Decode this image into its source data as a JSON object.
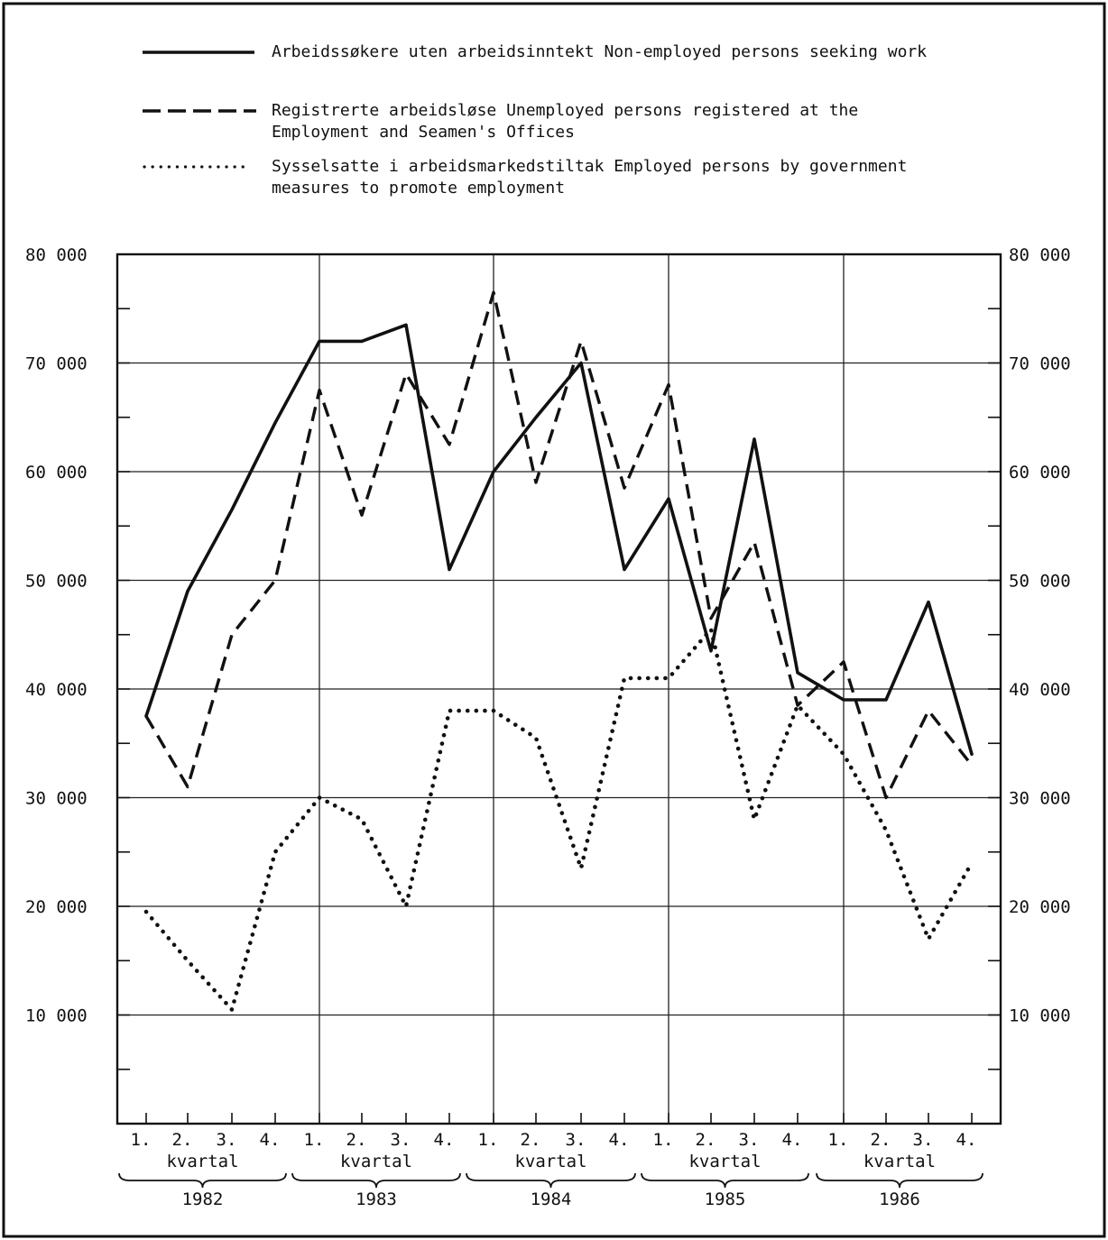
{
  "chart_data": {
    "type": "line",
    "legend": [
      {
        "series": "solid",
        "lines": [
          "Arbeidssøkere uten arbeidsinntekt  Non-employed persons seeking work"
        ]
      },
      {
        "series": "dashed",
        "lines": [
          "Registrerte arbeidsløse  Unemployed persons registered at the",
          "Employment and Seamen's Offices"
        ]
      },
      {
        "series": "dotted",
        "lines": [
          "Sysselsatte i arbeidsmarkedstiltak  Employed persons by government",
          "measures to promote employment"
        ]
      }
    ],
    "ylim": [
      0,
      80000
    ],
    "y_ticks": [
      10000,
      20000,
      30000,
      40000,
      50000,
      60000,
      70000,
      80000
    ],
    "y_tick_labels_left": [
      "10 000",
      "20 000",
      "30 000",
      "40 000",
      "50 000",
      "60 000",
      "70 000",
      "80 000"
    ],
    "y_tick_labels_right": [
      "10 000",
      "20 000",
      "30 000",
      "40 000",
      "50 000",
      "60 000",
      "70 000",
      "80 000"
    ],
    "quarter_labels": [
      "1.",
      "2.",
      "3.",
      "4.",
      "1.",
      "2.",
      "3.",
      "4.",
      "1.",
      "2.",
      "3.",
      "4.",
      "1.",
      "2.",
      "3.",
      "4.",
      "1.",
      "2.",
      "3.",
      "4."
    ],
    "period_label": "kvartal",
    "years": [
      "1982",
      "1983",
      "1984",
      "1985",
      "1986"
    ],
    "grid": true,
    "series": [
      {
        "style": "solid",
        "values": [
          37500,
          49000,
          56500,
          64500,
          72000,
          72000,
          73500,
          51000,
          60000,
          65000,
          70000,
          51000,
          57500,
          43500,
          63000,
          41500,
          39000,
          39000,
          48000,
          34000
        ]
      },
      {
        "style": "dashed",
        "values": [
          37500,
          31000,
          45000,
          50000,
          67500,
          56000,
          69000,
          62500,
          76500,
          59000,
          72000,
          58500,
          68000,
          46500,
          53500,
          38500,
          42500,
          30000,
          38000,
          33000
        ]
      },
      {
        "style": "dotted",
        "values": [
          19500,
          15000,
          10500,
          25000,
          30000,
          28000,
          20000,
          38000,
          38000,
          35500,
          23500,
          41000,
          41000,
          45500,
          28000,
          38500,
          34000,
          27000,
          17000,
          24000
        ]
      }
    ]
  }
}
